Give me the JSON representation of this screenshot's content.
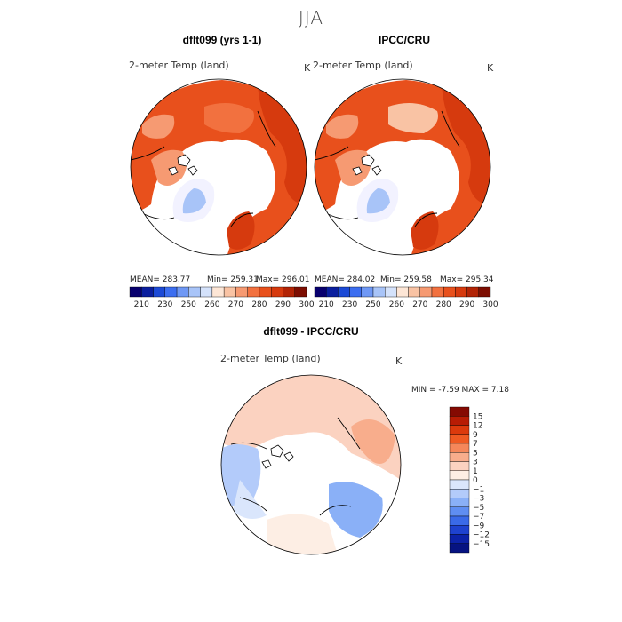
{
  "season": "JJA",
  "panels": [
    {
      "title": "dflt099 (yrs 1-1)",
      "variable": "2-meter Temp (land)",
      "units": "K",
      "mean": "MEAN= 283.77",
      "min": "Min= 259.31",
      "max": "Max= 296.01"
    },
    {
      "title": "IPCC/CRU",
      "variable": "2-meter Temp (land)",
      "units": "K",
      "mean": "MEAN= 284.02",
      "min": "Min= 259.58",
      "max": "Max= 295.34"
    }
  ],
  "diff": {
    "title": "dflt099 - IPCC/CRU",
    "variable": "2-meter Temp (land)",
    "units": "K",
    "minmax": "MIN =  -7.59 MAX =   7.18"
  },
  "chart_data": [
    {
      "type": "heatmap",
      "title": "dflt099 (yrs 1-1)",
      "subtitle": "2-meter Temp (land)",
      "units": "K",
      "projection": "north polar stereographic",
      "mean": 283.77,
      "min": 259.31,
      "max": 296.01,
      "colorbar_ticks": [
        "210",
        "230",
        "250",
        "260",
        "270",
        "280",
        "290",
        "300"
      ]
    },
    {
      "type": "heatmap",
      "title": "IPCC/CRU",
      "subtitle": "2-meter Temp (land)",
      "units": "K",
      "projection": "north polar stereographic",
      "mean": 284.02,
      "min": 259.58,
      "max": 295.34,
      "colorbar_ticks": [
        "210",
        "230",
        "250",
        "260",
        "270",
        "280",
        "290",
        "300"
      ]
    },
    {
      "type": "heatmap",
      "title": "dflt099 - IPCC/CRU",
      "subtitle": "2-meter Temp (land)",
      "units": "K",
      "projection": "north polar stereographic",
      "min": -7.59,
      "max": 7.18,
      "colorbar_ticks": [
        "15",
        "12",
        "9",
        "7",
        "5",
        "3",
        "1",
        "0",
        "-1",
        "-3",
        "-5",
        "-7",
        "-9",
        "-12",
        "-15"
      ]
    }
  ],
  "colors": {
    "abs_scale": [
      "#08006e",
      "#0a1e9e",
      "#1c4ad6",
      "#3c6ef0",
      "#6f98f5",
      "#a8c4f8",
      "#d4e2fb",
      "#fde6d6",
      "#f9c3a4",
      "#f69a72",
      "#f2713f",
      "#e8501c",
      "#d63a0e",
      "#b22406",
      "#7d0e02"
    ],
    "diff_scale": [
      "#850a02",
      "#b81c04",
      "#dc3a0c",
      "#ef5a22",
      "#f5875a",
      "#f8ad8c",
      "#fbd2c0",
      "#fdeee4",
      "#dae6fc",
      "#b3cbfa",
      "#8ab0f7",
      "#5f8ef2",
      "#3a6ae8",
      "#1e42cf",
      "#0c22a8",
      "#061381"
    ],
    "ocean": "#ffffff",
    "warm_land": "#e8501c",
    "coast": "#000000"
  }
}
